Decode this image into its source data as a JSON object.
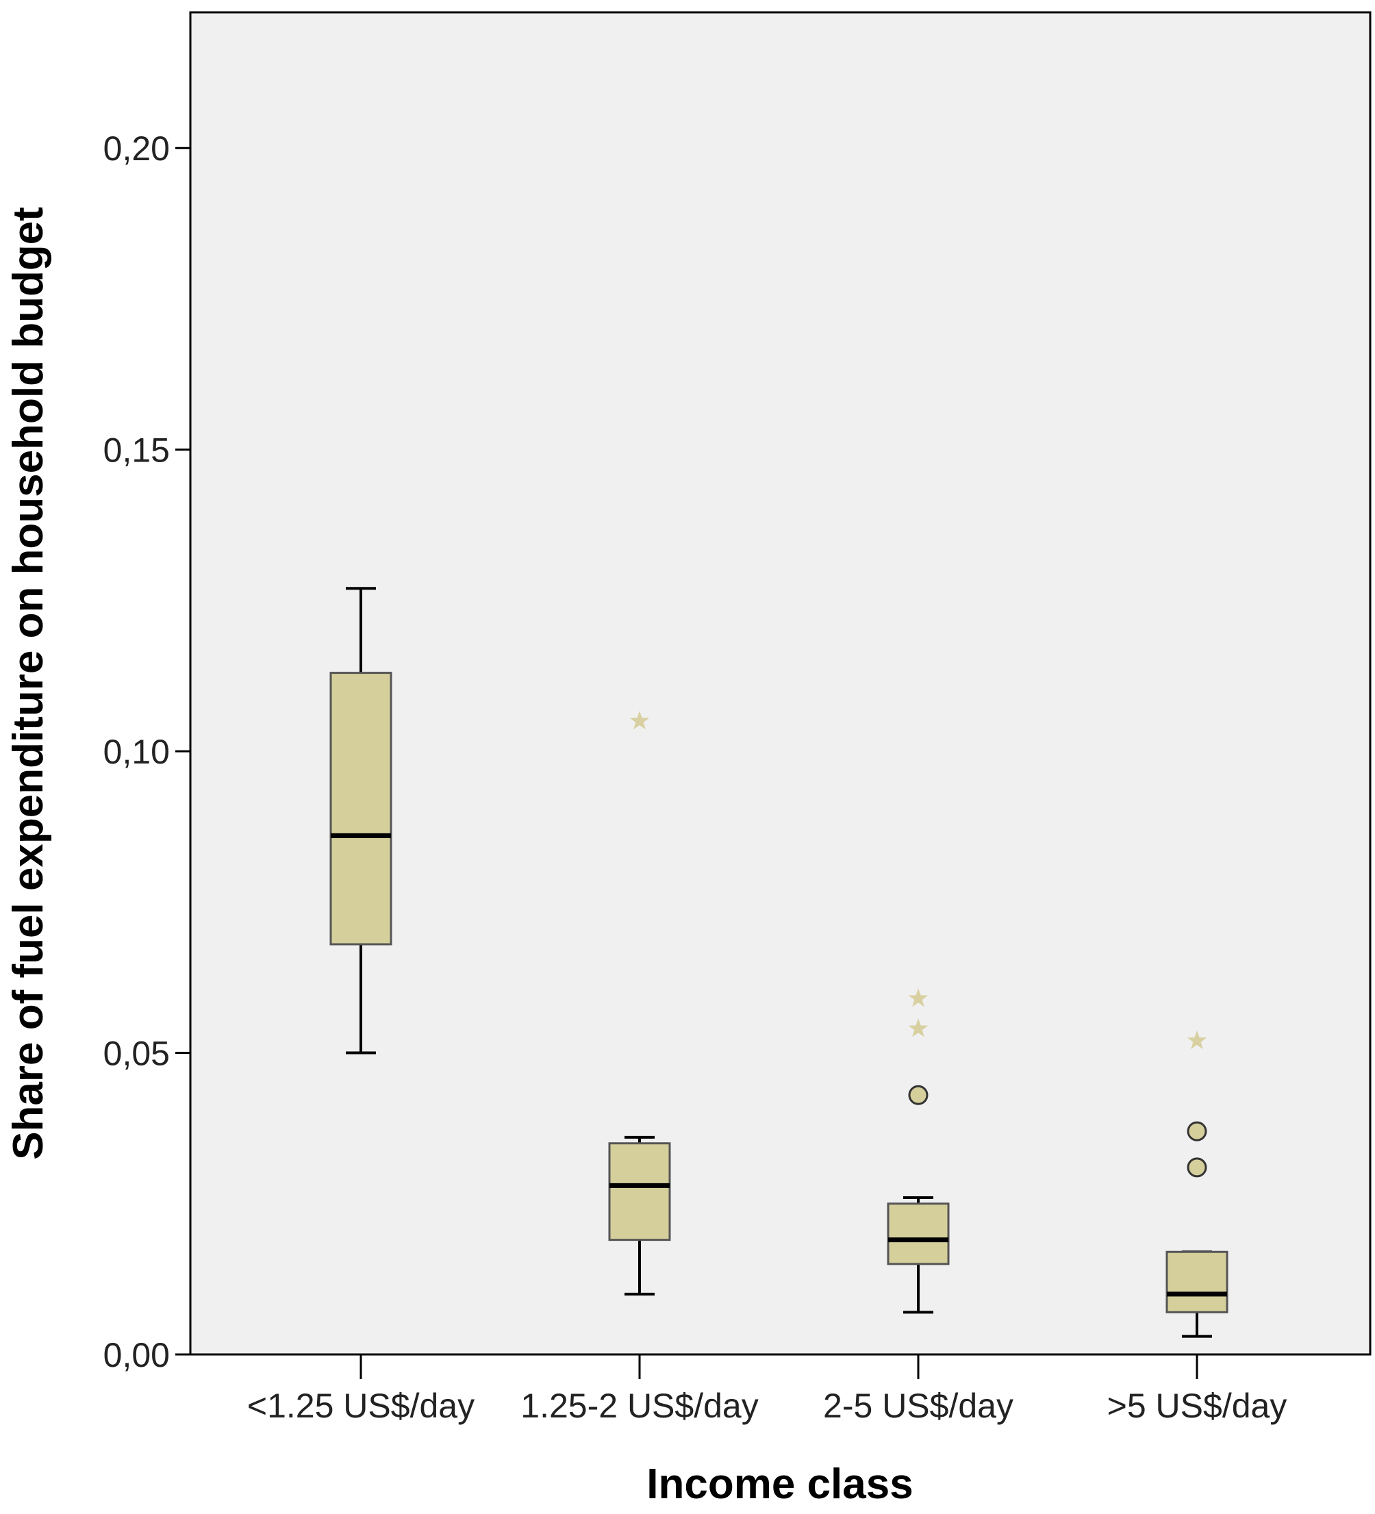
{
  "chart_data": {
    "type": "boxplot",
    "xlabel": "Income class",
    "ylabel": "Share of fuel expenditure on household budget",
    "ylim": [
      0,
      0.2225
    ],
    "yticks": [
      {
        "value": 0.0,
        "label": "0,00"
      },
      {
        "value": 0.05,
        "label": "0,05"
      },
      {
        "value": 0.1,
        "label": "0,10"
      },
      {
        "value": 0.15,
        "label": "0,15"
      },
      {
        "value": 0.2,
        "label": "0,20"
      }
    ],
    "categories": [
      "<1.25 US$/day",
      "1.25-2 US$/day",
      "2-5 US$/day",
      ">5 US$/day"
    ],
    "boxes": [
      {
        "category": "<1.25 US$/day",
        "whisker_low": 0.05,
        "q1": 0.068,
        "median": 0.086,
        "q3": 0.113,
        "whisker_high": 0.127,
        "outliers": [],
        "extremes": []
      },
      {
        "category": "1.25-2 US$/day",
        "whisker_low": 0.01,
        "q1": 0.019,
        "median": 0.028,
        "q3": 0.035,
        "whisker_high": 0.036,
        "outliers": [],
        "extremes": [
          0.105
        ]
      },
      {
        "category": "2-5 US$/day",
        "whisker_low": 0.007,
        "q1": 0.015,
        "median": 0.019,
        "q3": 0.025,
        "whisker_high": 0.026,
        "outliers": [
          0.043
        ],
        "extremes": [
          0.059,
          0.054
        ]
      },
      {
        "category": ">5 US$/day",
        "whisker_low": 0.003,
        "q1": 0.007,
        "median": 0.01,
        "q3": 0.017,
        "whisker_high": 0.017,
        "outliers": [
          0.037,
          0.031
        ],
        "extremes": [
          0.052
        ]
      }
    ],
    "colors": {
      "plot_background": "#f0f0f0",
      "box_fill": "#d5cf9b",
      "box_stroke": "#555555",
      "median": "#000000",
      "outlier_fill": "#d5cf9b",
      "extreme_marker": "#d8d0a0"
    },
    "grid": false,
    "legend": "none"
  }
}
